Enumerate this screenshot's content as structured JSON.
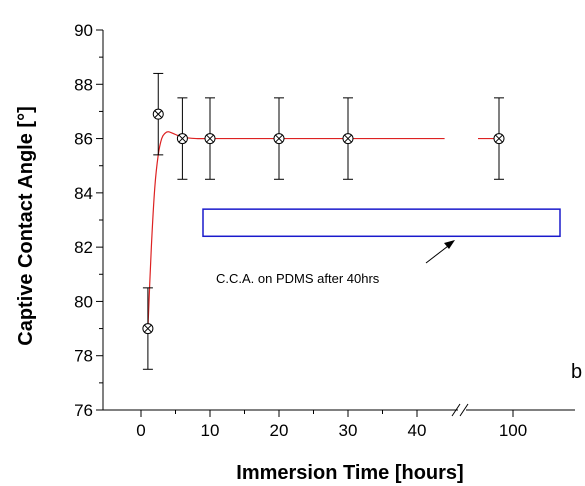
{
  "chart_data": {
    "type": "scatter",
    "title": "",
    "xlabel": "Immersion Time [hours]",
    "ylabel": "Captive Contact Angle [°]",
    "ylim": [
      76,
      90
    ],
    "y_ticks": [
      76,
      78,
      80,
      82,
      84,
      86,
      88,
      90
    ],
    "x_tick_labels": [
      "0",
      "10",
      "20",
      "30",
      "40",
      "100"
    ],
    "x_axis_break": "between 40 and 100",
    "panel_label": "b",
    "series": [
      {
        "marker": "circle-x",
        "x": [
          1,
          2.5,
          6,
          10,
          20,
          30,
          96
        ],
        "y": [
          79,
          86.9,
          86,
          86,
          86,
          86,
          86
        ],
        "err": [
          1.5,
          1.5,
          1.5,
          1.5,
          1.5,
          1.5,
          1.5
        ]
      }
    ],
    "fit_line": {
      "color": "#dd2222",
      "x": [
        1,
        1.5,
        2,
        2.5,
        3,
        3.5,
        4,
        5,
        6,
        8,
        10,
        20,
        30,
        40,
        44
      ],
      "y": [
        79.0,
        82.0,
        84.2,
        85.4,
        86.0,
        86.2,
        86.25,
        86.15,
        86.05,
        86.0,
        86.0,
        86.0,
        86.0,
        86.0,
        86.0
      ],
      "x_after_break": [
        90,
        96
      ],
      "y_after_break": [
        86.0,
        86.0
      ]
    },
    "reference_band": {
      "label": "C.C.A. on PDMS after 40hrs",
      "y_range": [
        82.4,
        83.4
      ],
      "color": "#1a1acc"
    },
    "grid": false
  }
}
